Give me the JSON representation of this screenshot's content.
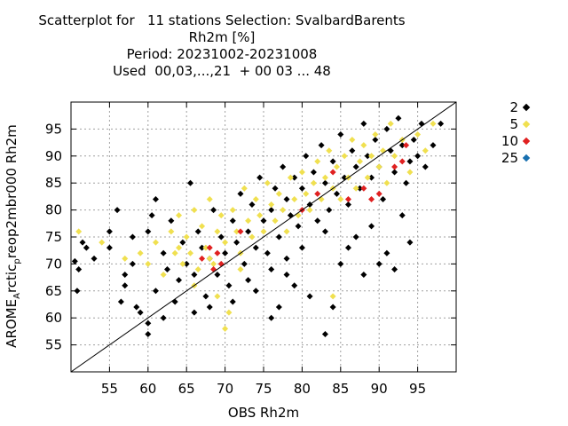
{
  "title": {
    "line1": "Scatterplot for   11 stations Selection: SvalbardBarents",
    "line2": "Rh2m [%]",
    "line3": "Period: 20231002-20231008",
    "line4": "Used  00,03,...,21  + 00 03 ... 48"
  },
  "legend": {
    "items": [
      {
        "label": "2",
        "color": "#000000"
      },
      {
        "label": "5",
        "color": "#f0e050"
      },
      {
        "label": "10",
        "color": "#e02020"
      },
      {
        "label": "25",
        "color": "#1870b0"
      }
    ]
  },
  "chart_data": {
    "type": "scatter",
    "xlabel": "OBS Rh2m",
    "ylabel_main": "AROME",
    "ylabel_sub1": "A",
    "ylabel_mid": "rctic",
    "ylabel_sub2": "p",
    "ylabel_end": "reop2mbr000 Rh2m",
    "xlim": [
      50,
      100
    ],
    "ylim": [
      50,
      100
    ],
    "x_ticks": [
      55,
      60,
      65,
      70,
      75,
      80,
      85,
      90,
      95
    ],
    "y_ticks": [
      55,
      60,
      65,
      70,
      75,
      80,
      85,
      90,
      95
    ],
    "grid": true,
    "diagonal": true,
    "legend_position": "right",
    "series": [
      {
        "name": "2",
        "color": "#000000",
        "points": [
          [
            50.5,
            70.5
          ],
          [
            51,
            69
          ],
          [
            50.8,
            65
          ],
          [
            52,
            73
          ],
          [
            55,
            76
          ],
          [
            56,
            80
          ],
          [
            56.5,
            63
          ],
          [
            57,
            66
          ],
          [
            58,
            75
          ],
          [
            58.5,
            62
          ],
          [
            59,
            61
          ],
          [
            60,
            59
          ],
          [
            60,
            57
          ],
          [
            60.5,
            79
          ],
          [
            61,
            65
          ],
          [
            62,
            72
          ],
          [
            62.5,
            69
          ],
          [
            63,
            78
          ],
          [
            63.5,
            63
          ],
          [
            64,
            67
          ],
          [
            64.5,
            74
          ],
          [
            65,
            70
          ],
          [
            65.5,
            85
          ],
          [
            66,
            68
          ],
          [
            66.5,
            76
          ],
          [
            67,
            73
          ],
          [
            67.5,
            64
          ],
          [
            68,
            71
          ],
          [
            68.5,
            80
          ],
          [
            69,
            68
          ],
          [
            69.5,
            75
          ],
          [
            70,
            72
          ],
          [
            70.5,
            66
          ],
          [
            71,
            78
          ],
          [
            71.5,
            74
          ],
          [
            72,
            83
          ],
          [
            72.5,
            70
          ],
          [
            73,
            76
          ],
          [
            73.5,
            81
          ],
          [
            74,
            73
          ],
          [
            74.5,
            86
          ],
          [
            75,
            78
          ],
          [
            75.5,
            72
          ],
          [
            76,
            80
          ],
          [
            76.5,
            84
          ],
          [
            77,
            75
          ],
          [
            77.5,
            88
          ],
          [
            78,
            82
          ],
          [
            78.5,
            79
          ],
          [
            79,
            86
          ],
          [
            79.5,
            77
          ],
          [
            80,
            84
          ],
          [
            80.5,
            90
          ],
          [
            81,
            81
          ],
          [
            81.5,
            87
          ],
          [
            82,
            78
          ],
          [
            82.5,
            92
          ],
          [
            83,
            85
          ],
          [
            83.5,
            80
          ],
          [
            84,
            89
          ],
          [
            84.5,
            83
          ],
          [
            85,
            94
          ],
          [
            85.5,
            86
          ],
          [
            86,
            81
          ],
          [
            86.5,
            91
          ],
          [
            87,
            88
          ],
          [
            87.5,
            84
          ],
          [
            88,
            96
          ],
          [
            88.5,
            90
          ],
          [
            89,
            86
          ],
          [
            89.5,
            93
          ],
          [
            90,
            88
          ],
          [
            90.5,
            82
          ],
          [
            91,
            95
          ],
          [
            91.5,
            91
          ],
          [
            92,
            87
          ],
          [
            92.5,
            97
          ],
          [
            93,
            92
          ],
          [
            93.5,
            85
          ],
          [
            94,
            89
          ],
          [
            94.5,
            93
          ],
          [
            95,
            90
          ],
          [
            95.5,
            96
          ],
          [
            96,
            88
          ],
          [
            97,
            92
          ],
          [
            98,
            96
          ],
          [
            92,
            69
          ],
          [
            90,
            70
          ],
          [
            88,
            68
          ],
          [
            86,
            73
          ],
          [
            84,
            62
          ],
          [
            83,
            57
          ],
          [
            81,
            64
          ],
          [
            79,
            66
          ],
          [
            78,
            68
          ],
          [
            77,
            62
          ],
          [
            76,
            60
          ],
          [
            73,
            67
          ],
          [
            71,
            63
          ],
          [
            68,
            62
          ],
          [
            66,
            61
          ],
          [
            62,
            60
          ],
          [
            60,
            76
          ],
          [
            61,
            82
          ],
          [
            58,
            70
          ],
          [
            57,
            68
          ],
          [
            55,
            73
          ],
          [
            53,
            71
          ],
          [
            51.5,
            74
          ],
          [
            93,
            79
          ],
          [
            94,
            74
          ],
          [
            91,
            72
          ],
          [
            89,
            77
          ],
          [
            87,
            75
          ],
          [
            85,
            70
          ],
          [
            83,
            76
          ],
          [
            80,
            73
          ],
          [
            78,
            71
          ],
          [
            76,
            69
          ],
          [
            74,
            65
          ]
        ]
      },
      {
        "name": "5",
        "color": "#f0e050",
        "points": [
          [
            51,
            76
          ],
          [
            54,
            74
          ],
          [
            57,
            71
          ],
          [
            59,
            72
          ],
          [
            60,
            70
          ],
          [
            61,
            74
          ],
          [
            62,
            68
          ],
          [
            63,
            76
          ],
          [
            63.5,
            72
          ],
          [
            64,
            79
          ],
          [
            64.5,
            70
          ],
          [
            65,
            75
          ],
          [
            65.5,
            72
          ],
          [
            66,
            80
          ],
          [
            66.5,
            69
          ],
          [
            67,
            77
          ],
          [
            67.5,
            73
          ],
          [
            68,
            82
          ],
          [
            68.5,
            70
          ],
          [
            69,
            76
          ],
          [
            69.5,
            79
          ],
          [
            70,
            74
          ],
          [
            70.5,
            61
          ],
          [
            71,
            80
          ],
          [
            71.5,
            76
          ],
          [
            72,
            72
          ],
          [
            72.5,
            84
          ],
          [
            73,
            78
          ],
          [
            73.5,
            75
          ],
          [
            74,
            82
          ],
          [
            74.5,
            79
          ],
          [
            75,
            76
          ],
          [
            75.5,
            85
          ],
          [
            76,
            81
          ],
          [
            76.5,
            78
          ],
          [
            77,
            83
          ],
          [
            77.5,
            80
          ],
          [
            78,
            76
          ],
          [
            78.5,
            86
          ],
          [
            79,
            82
          ],
          [
            79.5,
            79
          ],
          [
            80,
            87
          ],
          [
            80.5,
            83
          ],
          [
            81,
            80
          ],
          [
            81.5,
            85
          ],
          [
            82,
            89
          ],
          [
            82.5,
            82
          ],
          [
            83,
            86
          ],
          [
            83.5,
            91
          ],
          [
            84,
            84
          ],
          [
            84.5,
            88
          ],
          [
            85,
            82
          ],
          [
            85.5,
            90
          ],
          [
            86,
            86
          ],
          [
            86.5,
            93
          ],
          [
            87,
            84
          ],
          [
            87.5,
            89
          ],
          [
            88,
            92
          ],
          [
            88.5,
            86
          ],
          [
            89,
            90
          ],
          [
            89.5,
            94
          ],
          [
            90,
            88
          ],
          [
            90.5,
            91
          ],
          [
            91,
            85
          ],
          [
            91.5,
            96
          ],
          [
            92,
            90
          ],
          [
            93,
            93
          ],
          [
            94,
            87
          ],
          [
            95,
            94
          ],
          [
            96,
            91
          ],
          [
            97,
            96
          ],
          [
            69,
            64
          ],
          [
            70,
            58
          ],
          [
            66,
            66
          ],
          [
            64,
            73
          ],
          [
            68,
            71
          ],
          [
            72,
            69
          ],
          [
            84,
            64
          ]
        ]
      },
      {
        "name": "10",
        "color": "#e02020",
        "points": [
          [
            67,
            71
          ],
          [
            68,
            73
          ],
          [
            68.5,
            69
          ],
          [
            69,
            72
          ],
          [
            69.5,
            70
          ],
          [
            72,
            76
          ],
          [
            80,
            80
          ],
          [
            82,
            83
          ],
          [
            84,
            87
          ],
          [
            86,
            82
          ],
          [
            88,
            84
          ],
          [
            89,
            82
          ],
          [
            90,
            83
          ],
          [
            92,
            88
          ],
          [
            93,
            89
          ],
          [
            93.5,
            92
          ]
        ]
      },
      {
        "name": "25",
        "color": "#1870b0",
        "points": []
      }
    ]
  }
}
